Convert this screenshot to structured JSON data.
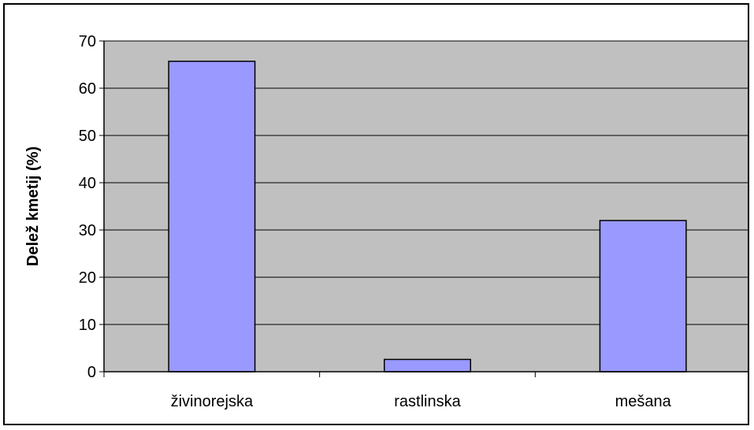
{
  "chart_data": {
    "type": "bar",
    "title": "",
    "xlabel": "",
    "ylabel": "Delež kmetij (%)",
    "categories": [
      "živinorejska",
      "rastlinska",
      "mešana"
    ],
    "values": [
      65.7,
      2.6,
      32.0
    ],
    "ylim": [
      0,
      70
    ],
    "yticks": [
      0,
      10,
      20,
      30,
      40,
      50,
      60,
      70
    ],
    "ytick_labels": [
      "0",
      "10",
      "20",
      "30",
      "40",
      "50",
      "60",
      "70"
    ],
    "grid": true,
    "legend": "none"
  },
  "colors": {
    "plot_background": "#c0c0c0",
    "bar_fill": "#9999ff",
    "bar_stroke": "#000000",
    "gridline": "#000000",
    "axis": "#000000",
    "text": "#000000",
    "frame": "#000000"
  }
}
